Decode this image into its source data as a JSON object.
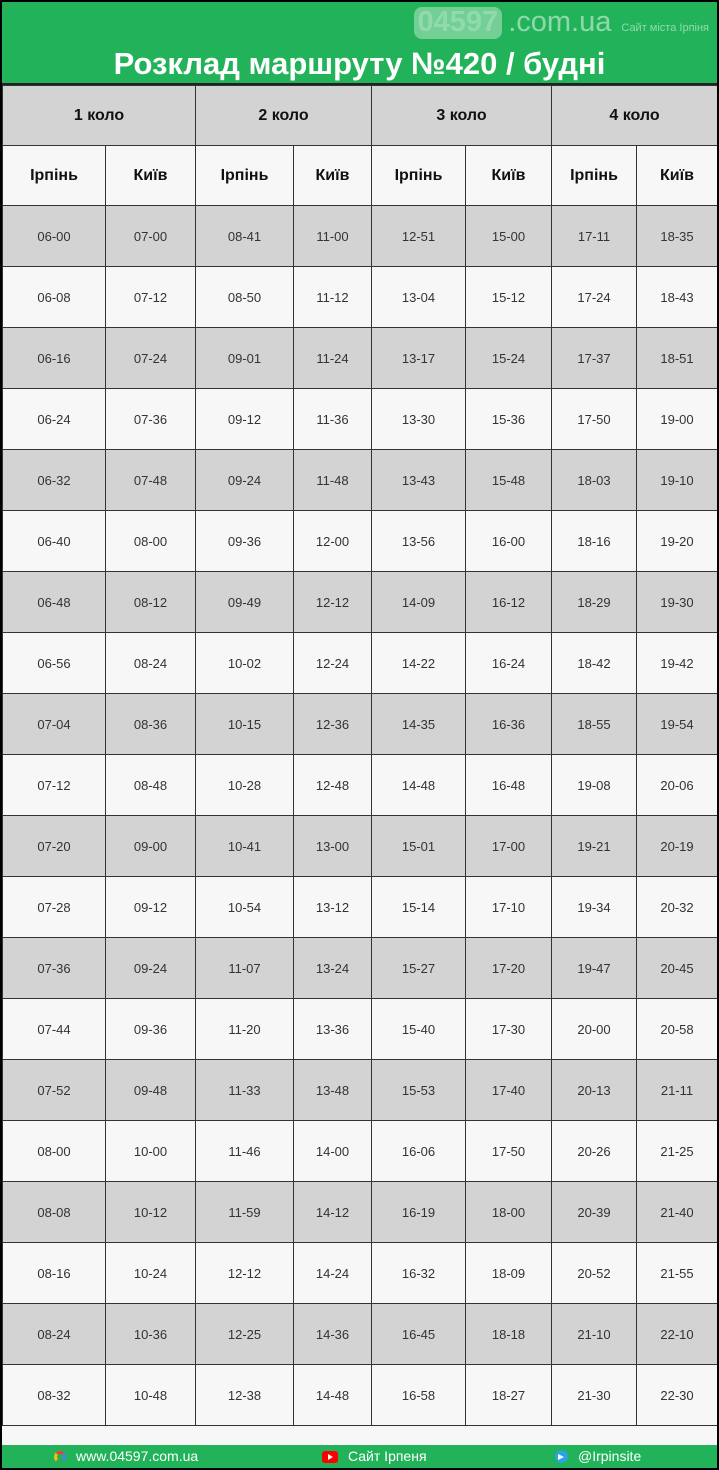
{
  "title": "Розклад маршруту №420 / будні",
  "watermark": {
    "number": "04597",
    "domain": ".com.ua",
    "subtitle": "Сайт міста Ірпіня"
  },
  "colors": {
    "brand_green": "#22b35a",
    "row_gray": "#d3d3d3",
    "row_light": "#f7f7f7"
  },
  "table": {
    "groups": [
      "1 коло",
      "2 коло",
      "3 коло",
      "4 коло"
    ],
    "columns": [
      "Ірпінь",
      "Київ",
      "Ірпінь",
      "Київ",
      "Ірпінь",
      "Київ",
      "Ірпінь",
      "Київ"
    ],
    "rows": [
      [
        "06-00",
        "07-00",
        "08-41",
        "11-00",
        "12-51",
        "15-00",
        "17-11",
        "18-35"
      ],
      [
        "06-08",
        "07-12",
        "08-50",
        "11-12",
        "13-04",
        "15-12",
        "17-24",
        "18-43"
      ],
      [
        "06-16",
        "07-24",
        "09-01",
        "11-24",
        "13-17",
        "15-24",
        "17-37",
        "18-51"
      ],
      [
        "06-24",
        "07-36",
        "09-12",
        "11-36",
        "13-30",
        "15-36",
        "17-50",
        "19-00"
      ],
      [
        "06-32",
        "07-48",
        "09-24",
        "11-48",
        "13-43",
        "15-48",
        "18-03",
        "19-10"
      ],
      [
        "06-40",
        "08-00",
        "09-36",
        "12-00",
        "13-56",
        "16-00",
        "18-16",
        "19-20"
      ],
      [
        "06-48",
        "08-12",
        "09-49",
        "12-12",
        "14-09",
        "16-12",
        "18-29",
        "19-30"
      ],
      [
        "06-56",
        "08-24",
        "10-02",
        "12-24",
        "14-22",
        "16-24",
        "18-42",
        "19-42"
      ],
      [
        "07-04",
        "08-36",
        "10-15",
        "12-36",
        "14-35",
        "16-36",
        "18-55",
        "19-54"
      ],
      [
        "07-12",
        "08-48",
        "10-28",
        "12-48",
        "14-48",
        "16-48",
        "19-08",
        "20-06"
      ],
      [
        "07-20",
        "09-00",
        "10-41",
        "13-00",
        "15-01",
        "17-00",
        "19-21",
        "20-19"
      ],
      [
        "07-28",
        "09-12",
        "10-54",
        "13-12",
        "15-14",
        "17-10",
        "19-34",
        "20-32"
      ],
      [
        "07-36",
        "09-24",
        "11-07",
        "13-24",
        "15-27",
        "17-20",
        "19-47",
        "20-45"
      ],
      [
        "07-44",
        "09-36",
        "11-20",
        "13-36",
        "15-40",
        "17-30",
        "20-00",
        "20-58"
      ],
      [
        "07-52",
        "09-48",
        "11-33",
        "13-48",
        "15-53",
        "17-40",
        "20-13",
        "21-11"
      ],
      [
        "08-00",
        "10-00",
        "11-46",
        "14-00",
        "16-06",
        "17-50",
        "20-26",
        "21-25"
      ],
      [
        "08-08",
        "10-12",
        "11-59",
        "14-12",
        "16-19",
        "18-00",
        "20-39",
        "21-40"
      ],
      [
        "08-16",
        "10-24",
        "12-12",
        "14-24",
        "16-32",
        "18-09",
        "20-52",
        "21-55"
      ],
      [
        "08-24",
        "10-36",
        "12-25",
        "14-36",
        "16-45",
        "18-18",
        "21-10",
        "22-10"
      ],
      [
        "08-32",
        "10-48",
        "12-38",
        "14-48",
        "16-58",
        "18-27",
        "21-30",
        "22-30"
      ]
    ]
  },
  "footer": {
    "website": {
      "label": "www.04597.com.ua",
      "icon": "google-icon"
    },
    "youtube": {
      "label": "Сайт Ірпеня",
      "icon": "youtube-icon"
    },
    "telegram": {
      "label": "@Irpinsite",
      "icon": "telegram-icon"
    }
  }
}
